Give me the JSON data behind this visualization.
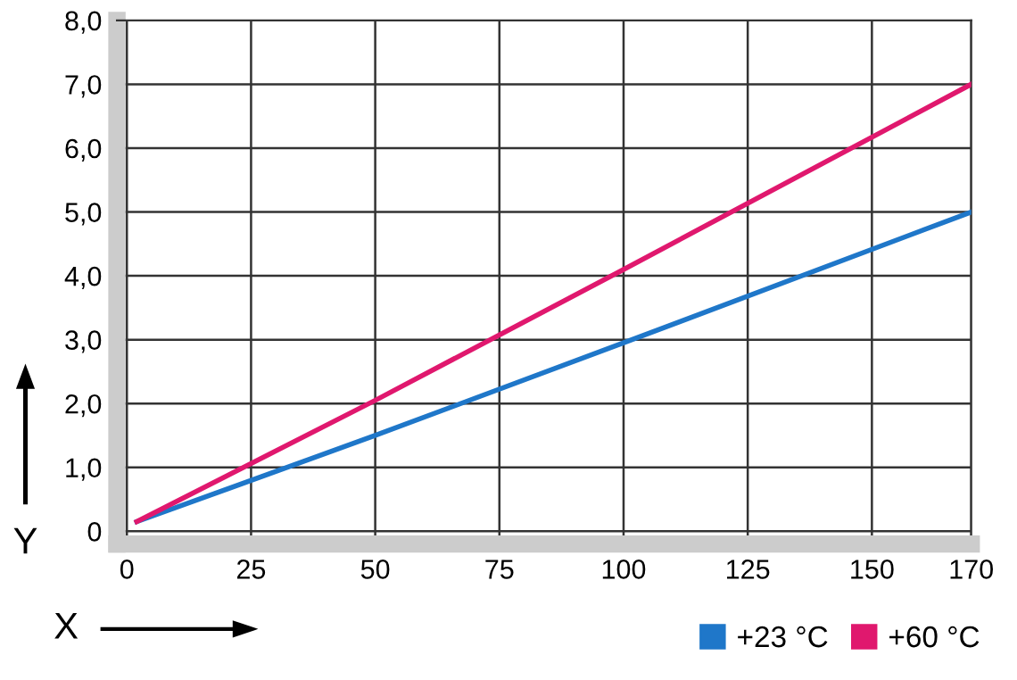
{
  "chart_data": {
    "type": "line",
    "xlabel": "X",
    "ylabel": "Y",
    "series": [
      {
        "name": "+23 °C",
        "color": "#1f77c9",
        "x": [
          2,
          50,
          100,
          170
        ],
        "values": [
          0.15,
          1.5,
          2.95,
          5.0
        ]
      },
      {
        "name": "+60 °C",
        "color": "#e0186e",
        "x": [
          2,
          50,
          100,
          170
        ],
        "values": [
          0.15,
          2.05,
          4.1,
          7.0
        ]
      }
    ],
    "xlim": [
      -2,
      170
    ],
    "xticks": [
      0,
      25,
      50,
      75,
      100,
      125,
      150,
      170
    ],
    "ylim": [
      -0.2,
      8
    ],
    "yticks": [
      0,
      {
        "value": 1,
        "label": "1,0"
      },
      {
        "value": 2,
        "label": "2,0"
      },
      {
        "value": 3,
        "label": "3,0"
      },
      {
        "value": 4,
        "label": "4,0"
      },
      {
        "value": 5,
        "label": "5,0"
      },
      {
        "value": 6,
        "label": "6,0"
      },
      {
        "value": 7,
        "label": "7,0"
      },
      {
        "value": 8,
        "label": "8,0"
      }
    ],
    "grid": true,
    "legend": "bottom right",
    "marker": "none",
    "line_style": "solid"
  }
}
